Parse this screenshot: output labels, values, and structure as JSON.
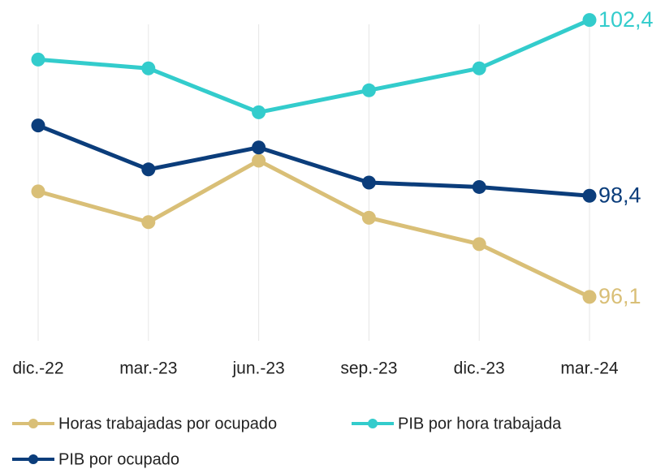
{
  "chart_data": {
    "type": "line",
    "categories": [
      "dic.-22",
      "mar.-23",
      "jun.-23",
      "sep.-23",
      "dic.-23",
      "mar.-24"
    ],
    "series": [
      {
        "name": "Horas trabajadas por ocupado",
        "color": "#d9bf77",
        "values": [
          98.5,
          97.8,
          99.2,
          97.9,
          97.3,
          96.1
        ],
        "value_labels": [
          null,
          null,
          null,
          null,
          null,
          "96,1"
        ]
      },
      {
        "name": "PIB por hora trabajada",
        "color": "#33cccc",
        "values": [
          101.5,
          101.3,
          100.3,
          100.8,
          101.3,
          102.4
        ],
        "value_labels": [
          null,
          null,
          null,
          null,
          null,
          "102,4"
        ]
      },
      {
        "name": "PIB por ocupado",
        "color": "#0b3d7b",
        "values": [
          100.0,
          99.0,
          99.5,
          98.7,
          98.6,
          98.4
        ],
        "value_labels": [
          null,
          null,
          null,
          null,
          null,
          "98,4"
        ]
      }
    ],
    "ylim": [
      95.1,
      102.8
    ],
    "grid": true
  }
}
